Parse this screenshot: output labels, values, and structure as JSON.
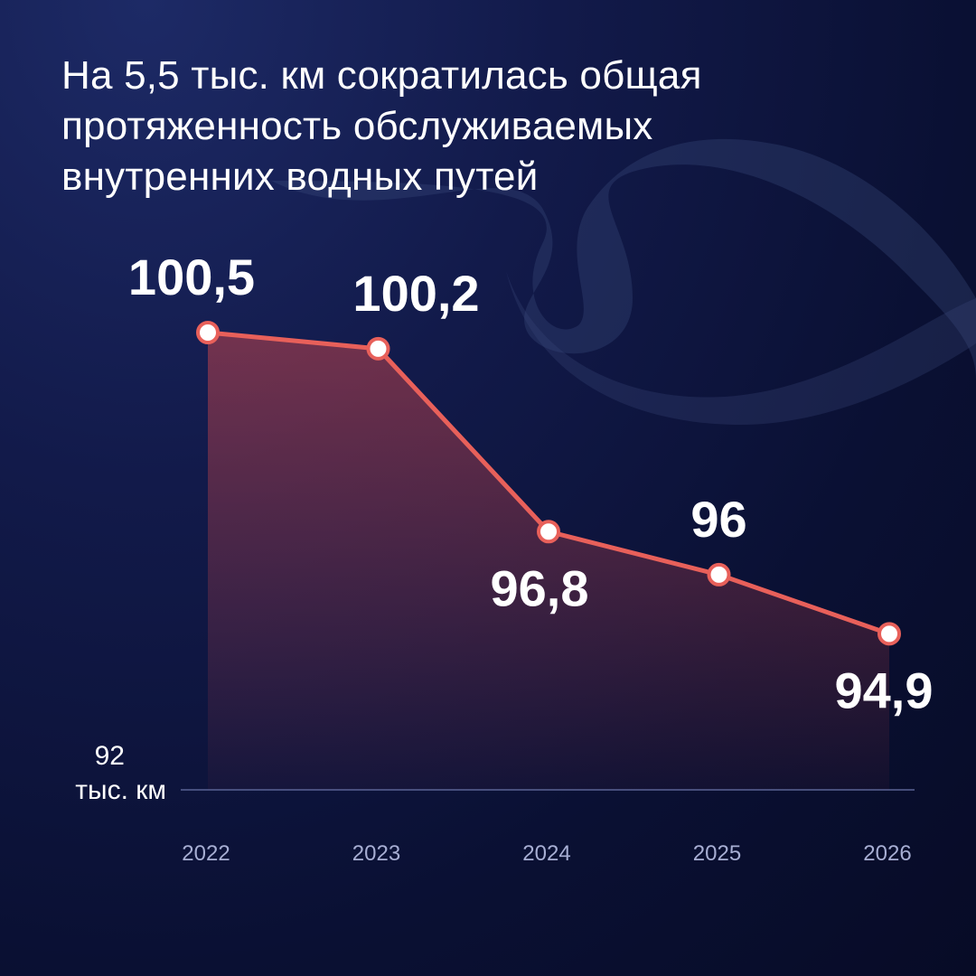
{
  "chart_data": {
    "type": "area",
    "title": "На 5,5 тыс. км сократилась общая протяженность обслуживаемых внутренних водных путей",
    "categories": [
      "2022",
      "2023",
      "2024",
      "2025",
      "2026"
    ],
    "series": [
      {
        "values": [
          100.5,
          100.2,
          96.8,
          96,
          94.9
        ],
        "data_labels": [
          "100,5",
          "100,2",
          "96,8",
          "96",
          "94,9"
        ]
      }
    ],
    "baseline_value_label": "92",
    "baseline_unit_label": "тыс. км",
    "ylim": [
      92,
      100.5
    ],
    "grid": false,
    "legend": "none",
    "colors": {
      "line": "#e8605a",
      "area": "#c0434b",
      "marker_fill": "#ffffff",
      "baseline": "#5a6394",
      "tick_text": "#a7aed3",
      "text": "#ffffff"
    }
  }
}
